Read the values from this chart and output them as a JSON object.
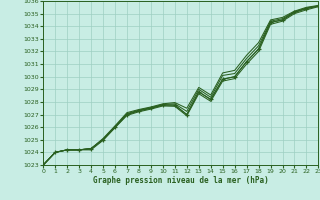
{
  "title": "Graphe pression niveau de la mer (hPa)",
  "xlim": [
    0,
    23
  ],
  "ylim": [
    1023,
    1036
  ],
  "x_ticks": [
    0,
    1,
    2,
    3,
    4,
    5,
    6,
    7,
    8,
    9,
    10,
    11,
    12,
    13,
    14,
    15,
    16,
    17,
    18,
    19,
    20,
    21,
    22,
    23
  ],
  "y_ticks": [
    1023,
    1024,
    1025,
    1026,
    1027,
    1028,
    1029,
    1030,
    1031,
    1032,
    1033,
    1034,
    1035,
    1036
  ],
  "background_color": "#c8ede4",
  "grid_color": "#9ecfc2",
  "line_color": "#2a6020",
  "line_main": [
    1023.0,
    1024.0,
    1024.2,
    1024.2,
    1024.3,
    1025.0,
    1026.0,
    1027.0,
    1027.3,
    1027.5,
    1027.75,
    1027.75,
    1027.0,
    1028.8,
    1028.2,
    1029.8,
    1030.0,
    1031.2,
    1032.2,
    1034.3,
    1034.5,
    1035.1,
    1035.4,
    1035.6
  ],
  "line_upper": [
    1023.0,
    1024.0,
    1024.2,
    1024.2,
    1024.3,
    1025.1,
    1026.1,
    1027.15,
    1027.4,
    1027.6,
    1027.85,
    1027.95,
    1027.5,
    1029.15,
    1028.55,
    1030.3,
    1030.5,
    1031.7,
    1032.7,
    1034.5,
    1034.7,
    1035.2,
    1035.5,
    1035.65
  ],
  "line_upper2": [
    1023.0,
    1024.0,
    1024.2,
    1024.2,
    1024.3,
    1025.05,
    1026.05,
    1027.07,
    1027.35,
    1027.55,
    1027.8,
    1027.85,
    1027.25,
    1029.0,
    1028.37,
    1030.1,
    1030.25,
    1031.45,
    1032.45,
    1034.4,
    1034.6,
    1035.15,
    1035.45,
    1035.62
  ],
  "line_lower": [
    1023.0,
    1024.0,
    1024.2,
    1024.2,
    1024.2,
    1024.95,
    1025.95,
    1026.93,
    1027.22,
    1027.43,
    1027.68,
    1027.65,
    1026.9,
    1028.65,
    1028.05,
    1029.65,
    1029.85,
    1031.0,
    1032.0,
    1034.15,
    1034.4,
    1035.0,
    1035.3,
    1035.55
  ]
}
